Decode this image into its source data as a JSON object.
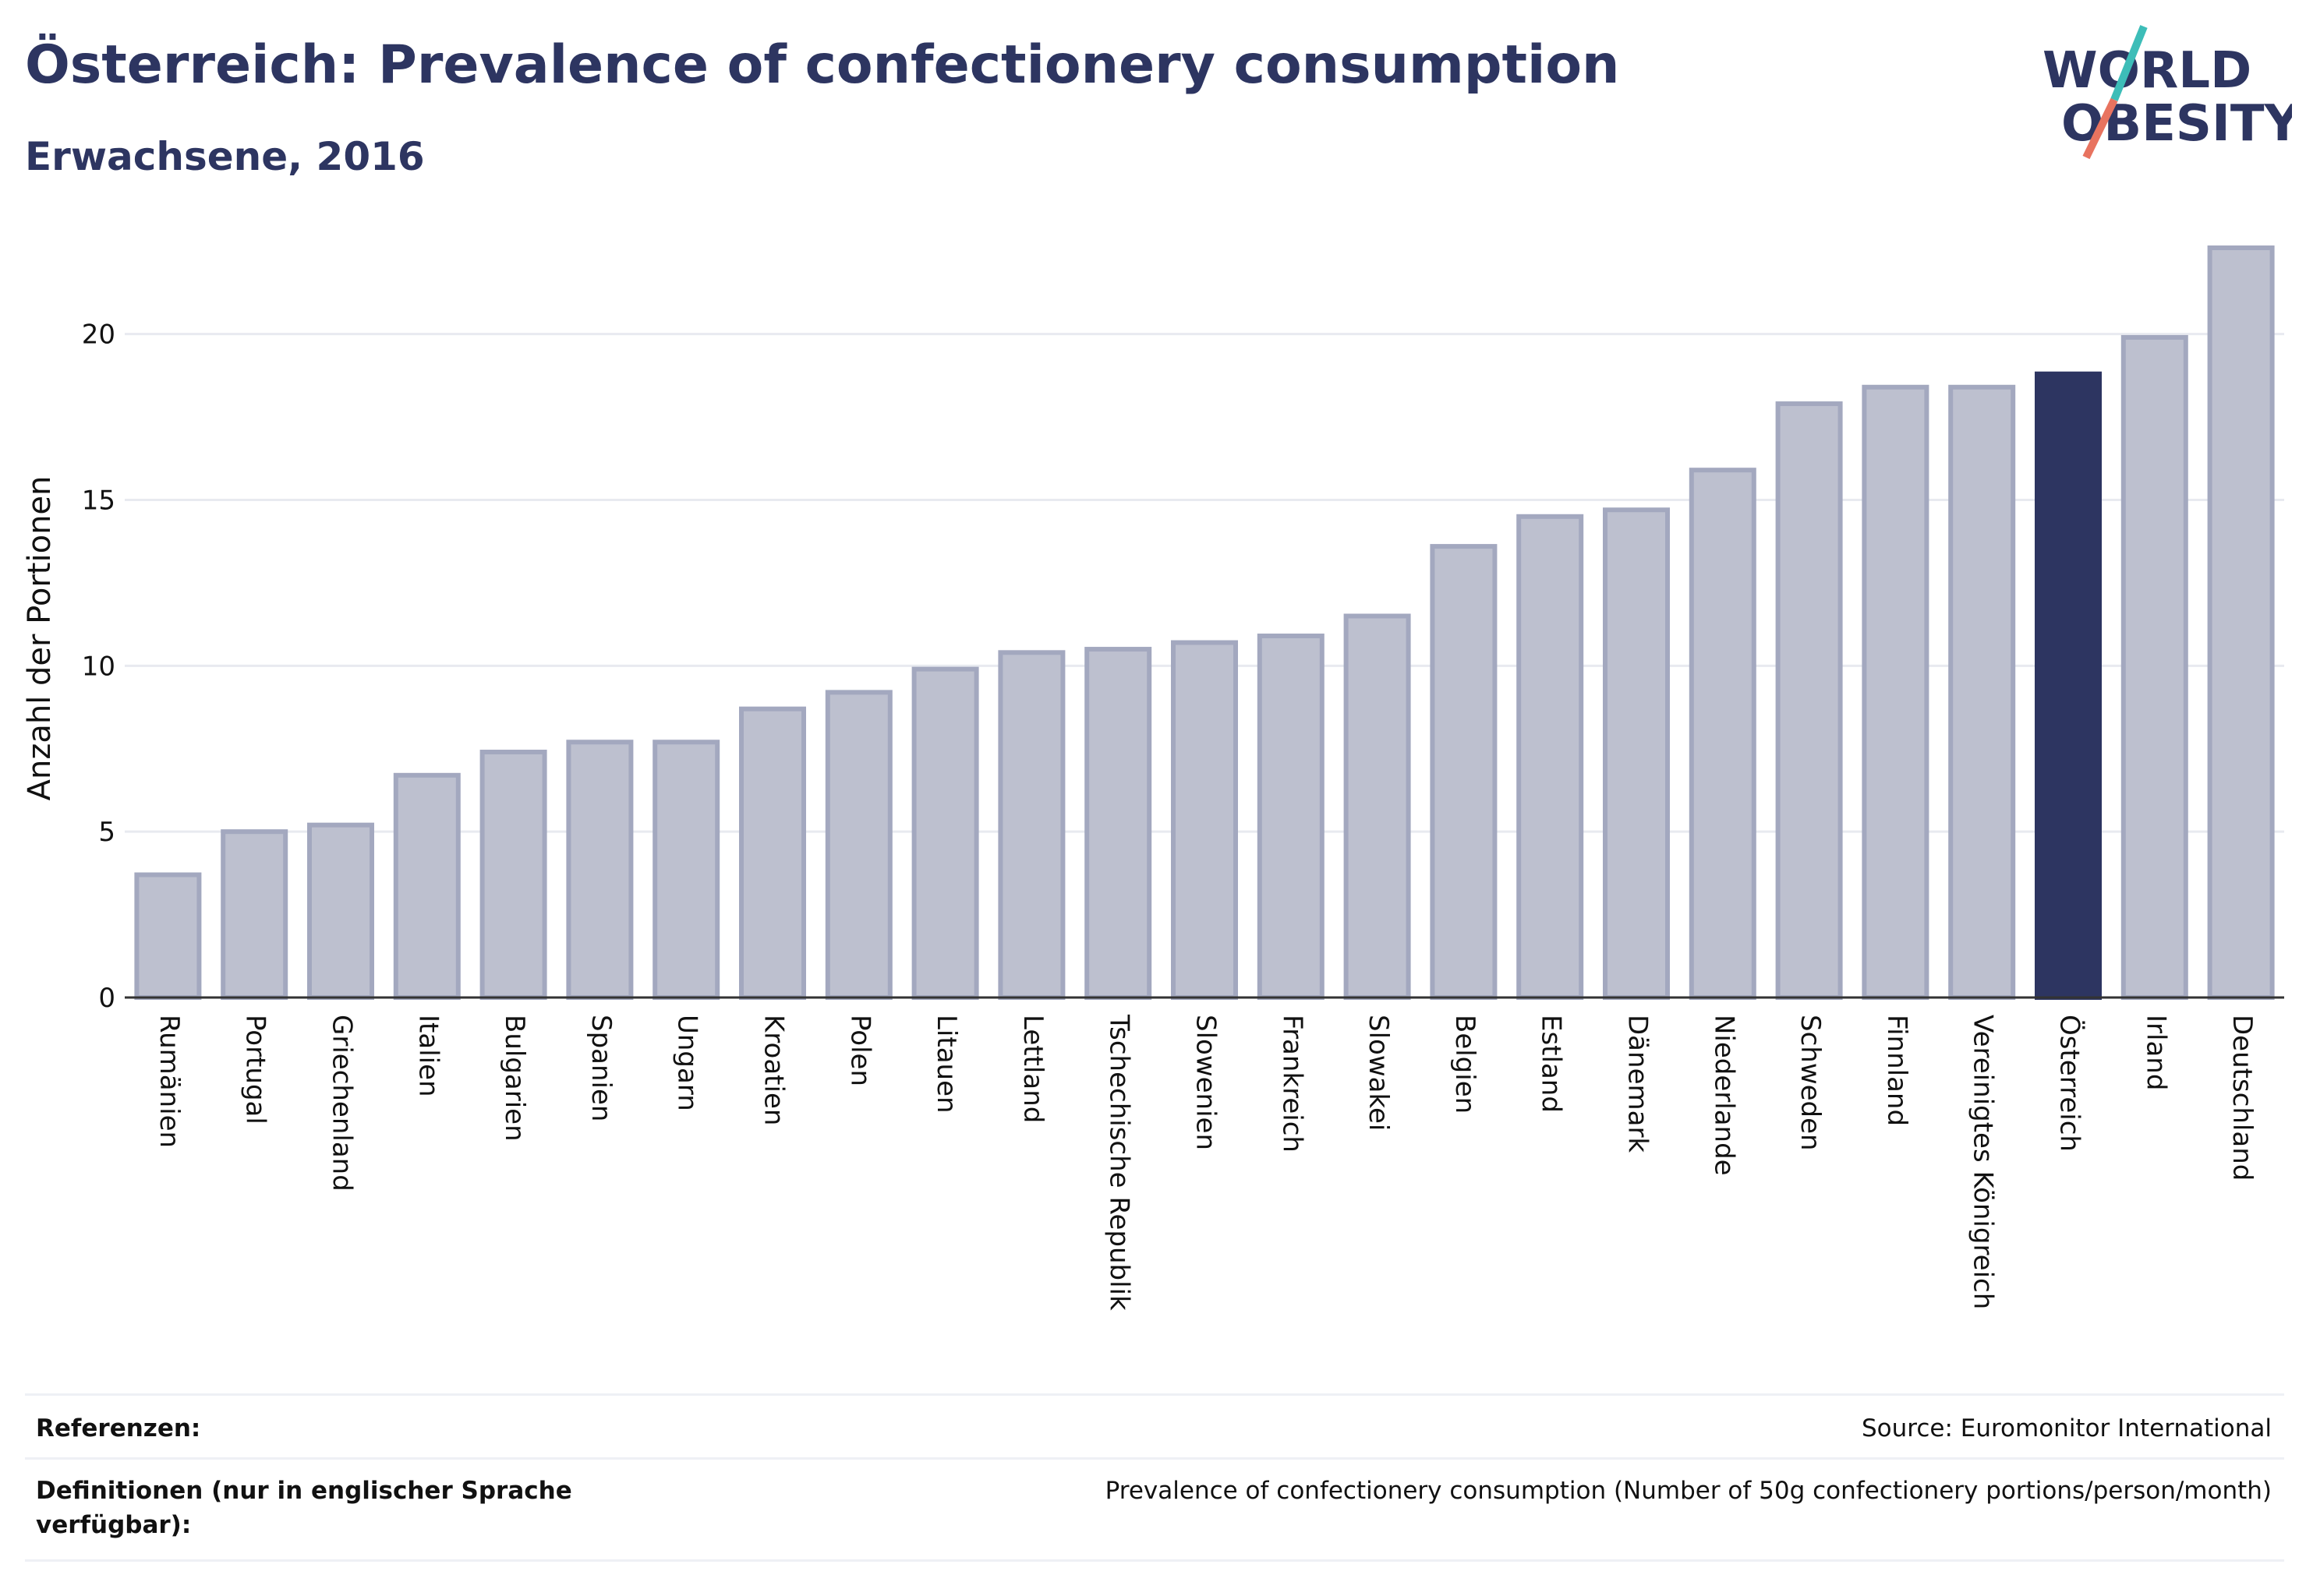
{
  "header": {
    "title": "Österreich: Prevalence of confectionery consumption",
    "subtitle": "Erwachsene, 2016"
  },
  "logo": {
    "line1": "WORLD",
    "line2": "OBESITY",
    "colors": {
      "text": "#2d3561",
      "teal": "#3dbdb8",
      "coral": "#e8735f"
    }
  },
  "colors": {
    "bar_default": "#bdc0cf",
    "bar_stroke": "#a3a8bf",
    "bar_highlight": "#2d3561",
    "gridline": "#e8eaf0",
    "axis": "#333333"
  },
  "chart_data": {
    "type": "bar",
    "ylabel": "Anzahl der Portionen",
    "ylim": [
      0,
      22.6
    ],
    "yticks": [
      0,
      5,
      10,
      15,
      20
    ],
    "grid": true,
    "highlight": "Österreich",
    "categories": [
      "Rumänien",
      "Portugal",
      "Griechenland",
      "Italien",
      "Bulgarien",
      "Spanien",
      "Ungarn",
      "Kroatien",
      "Polen",
      "Litauen",
      "Lettland",
      "Tschechische Republik",
      "Slowenien",
      "Frankreich",
      "Slowakei",
      "Belgien",
      "Estland",
      "Dänemark",
      "Niederlande",
      "Schweden",
      "Finnland",
      "Vereinigtes Königreich",
      "Österreich",
      "Irland",
      "Deutschland"
    ],
    "values": [
      3.7,
      5.0,
      5.2,
      6.7,
      7.4,
      7.7,
      7.7,
      8.7,
      9.2,
      9.9,
      10.4,
      10.5,
      10.7,
      10.9,
      11.5,
      13.6,
      14.5,
      14.7,
      15.9,
      17.9,
      18.4,
      18.4,
      18.8,
      19.9,
      22.6
    ]
  },
  "footer": {
    "references_label": "Referenzen:",
    "references_value": "Source: Euromonitor International",
    "definitions_label": "Definitionen (nur in englischer Sprache verfügbar):",
    "definitions_value": "Prevalence of confectionery consumption (Number of 50g confectionery portions/person/month)"
  }
}
